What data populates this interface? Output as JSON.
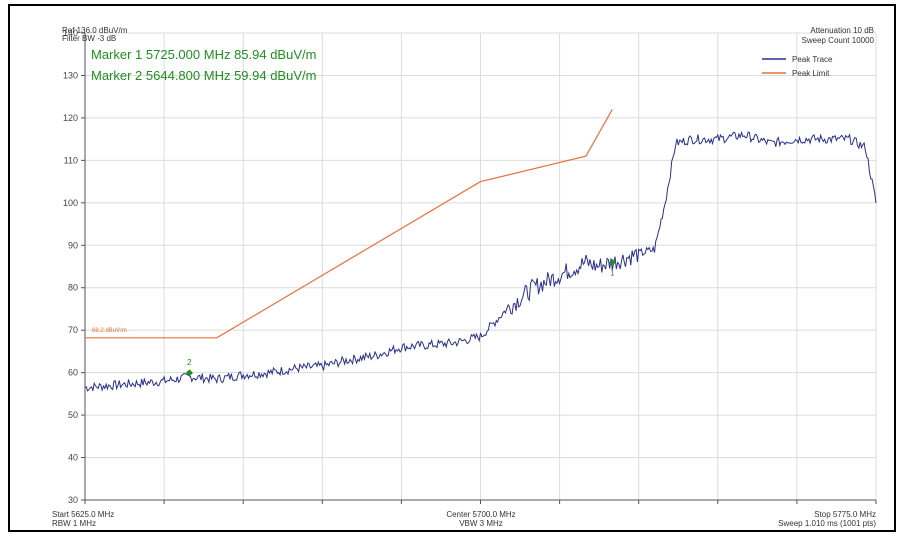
{
  "header": {
    "ref": "Ref 136.0 dBuV/m",
    "filter_bw": "Filter BW -3 dB",
    "attenuation": "Attenuation 10 dB",
    "sweep_count": "Sweep Count 10000"
  },
  "markers": [
    {
      "label": "Marker 1 5725.000 MHz 85.94 dBuV/m",
      "id": "1",
      "freq": 5725.0,
      "level": 85.94
    },
    {
      "label": "Marker 2 5644.800 MHz 59.94 dBuV/m",
      "id": "2",
      "freq": 5644.8,
      "level": 59.94
    }
  ],
  "footer": {
    "start": "Start 5625.0 MHz",
    "rbw": "RBW 1 MHz",
    "center": "Center 5700.0 MHz",
    "vbw": "VBW 3 MHz",
    "stop": "Stop 5775.0 MHz",
    "sweep": "Sweep 1.010 ms (1001 pts)"
  },
  "legend": [
    {
      "name": "Peak Trace",
      "color": "#2b2f8f"
    },
    {
      "name": "Peak Limit",
      "color": "#e8703a"
    }
  ],
  "limit_label": "68.2 dBuV/m",
  "chart_data": {
    "type": "line",
    "xlim": [
      5625.0,
      5775.0
    ],
    "ylim": [
      30,
      140
    ],
    "yticks": [
      30,
      40,
      50,
      60,
      70,
      80,
      90,
      100,
      110,
      120,
      130,
      140
    ],
    "x_gridlines": 10,
    "grid": true,
    "legend_position": "top-right",
    "series": [
      {
        "name": "Peak Trace",
        "color": "#2b2f8f",
        "x": [
          5625,
          5630,
          5635,
          5640,
          5645,
          5650,
          5655,
          5660,
          5665,
          5670,
          5675,
          5680,
          5685,
          5690,
          5695,
          5700,
          5702,
          5705,
          5710,
          5715,
          5720,
          5722,
          5725,
          5730,
          5733,
          5735,
          5737,
          5740,
          5745,
          5750,
          5755,
          5760,
          5765,
          5770,
          5773,
          5775
        ],
        "y": [
          56.5,
          57,
          57.5,
          58,
          59,
          58.5,
          59.5,
          60,
          61,
          61.5,
          63,
          64,
          66,
          66.5,
          67,
          68.5,
          71,
          75,
          80,
          83,
          86,
          85,
          86,
          88,
          89,
          100,
          114,
          115,
          115,
          116,
          114,
          115,
          115,
          115,
          113,
          100
        ]
      },
      {
        "name": "Peak Limit",
        "color": "#e8703a",
        "x": [
          5625,
          5650,
          5700,
          5720,
          5725
        ],
        "y": [
          68.2,
          68.2,
          105,
          111,
          122
        ]
      }
    ],
    "markers": [
      {
        "id": "1",
        "x": 5725.0,
        "y": 85.94
      },
      {
        "id": "2",
        "x": 5644.8,
        "y": 59.94
      }
    ]
  }
}
